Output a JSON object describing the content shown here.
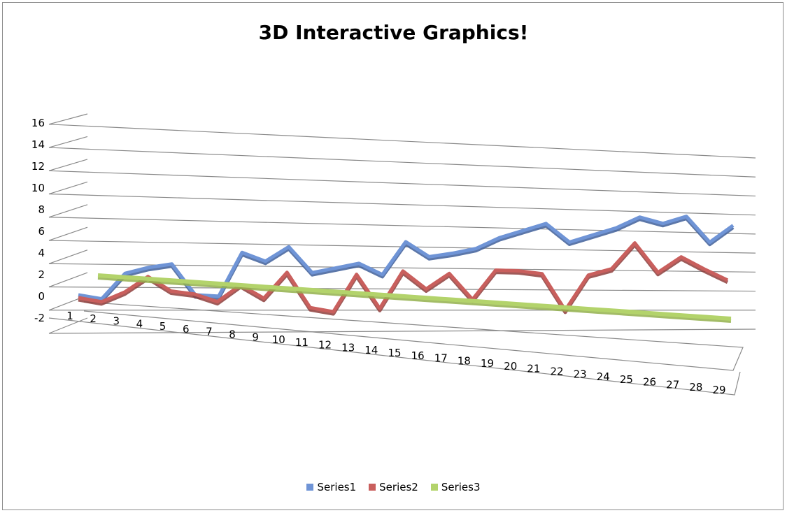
{
  "chart_data": {
    "type": "line",
    "title": "3D Interactive Graphics!",
    "xlabel": "",
    "ylabel": "",
    "categories": [
      "1",
      "2",
      "3",
      "4",
      "5",
      "6",
      "7",
      "8",
      "9",
      "10",
      "11",
      "12",
      "13",
      "14",
      "15",
      "16",
      "17",
      "18",
      "19",
      "20",
      "21",
      "22",
      "23",
      "24",
      "25",
      "26",
      "27",
      "28",
      "29"
    ],
    "ylim": [
      -2,
      16
    ],
    "yticks": [
      "16",
      "14",
      "12",
      "10",
      "8",
      "6",
      "4",
      "2",
      "0",
      "-2"
    ],
    "grid": true,
    "legend": "bottom",
    "series": [
      {
        "name": "Series1",
        "color": "#6f94d6",
        "values": [
          0,
          -0.2,
          2,
          2.6,
          3,
          0.6,
          0.6,
          4.3,
          3.7,
          5,
          3,
          3.5,
          4,
          3.2,
          6,
          4.9,
          5.3,
          5.8,
          6.8,
          7.5,
          8.2,
          6.8,
          7.5,
          8.2,
          9.2,
          8.8,
          9.5,
          7.5,
          9
        ]
      },
      {
        "name": "Series2",
        "color": "#c95f5d",
        "values": [
          0,
          -0.3,
          0.6,
          2,
          0.8,
          0.6,
          0,
          1.5,
          0.4,
          2.7,
          -0.3,
          -0.6,
          2.7,
          -0.2,
          3.1,
          1.6,
          3,
          0.8,
          3.4,
          3.4,
          3.2,
          0.1,
          3.2,
          3.8,
          6.1,
          3.6,
          5,
          4,
          3.1
        ]
      },
      {
        "name": "Series3",
        "color": "#b3d36b",
        "values": [
          2,
          2,
          2,
          2,
          2,
          2,
          2,
          2,
          2,
          2,
          2,
          2,
          2,
          2,
          2,
          2,
          2,
          2,
          2,
          2,
          2,
          2,
          2,
          2,
          2,
          2,
          2,
          2,
          2
        ]
      }
    ]
  }
}
